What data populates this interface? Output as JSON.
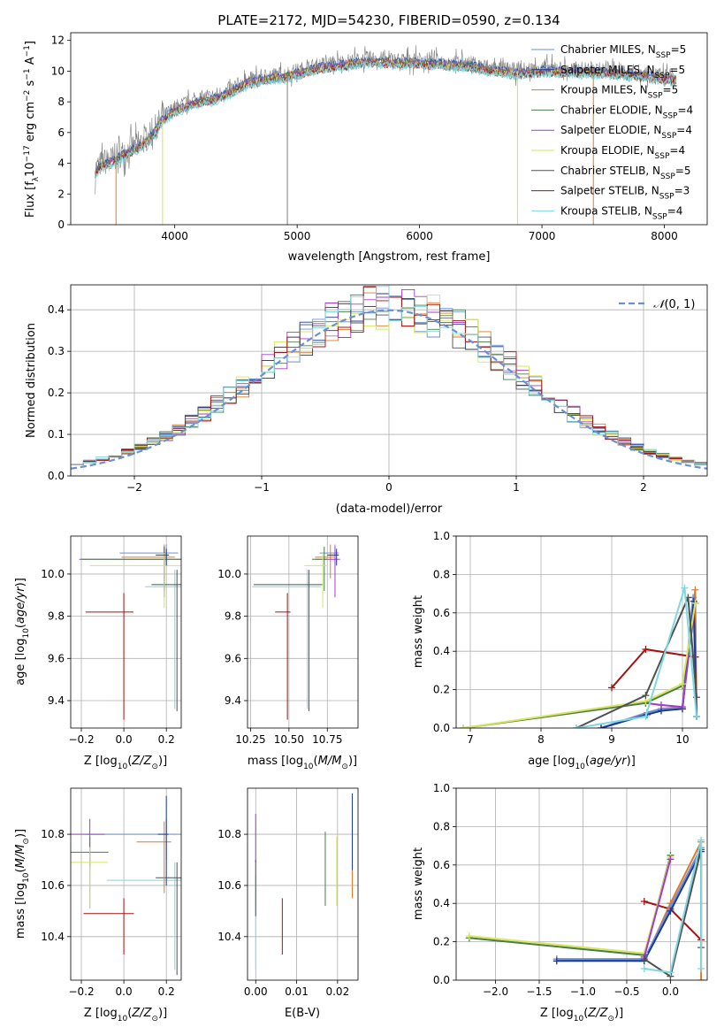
{
  "title": "PLATE=2172, MJD=54230, FIBERID=0590, z=0.134",
  "colors": {
    "Chabrier MILES": "#6b8fd6",
    "Salpeter MILES": "#1a3a9a",
    "Kroupa MILES": "#e07a28",
    "Chabrier ELODIE": "#4a7d4a",
    "Salpeter ELODIE": "#a23cc8",
    "Kroupa ELODIE": "#d8e65a",
    "Chabrier STELIB": "#505050",
    "Salpeter STELIB": "#a01414",
    "Kroupa STELIB": "#7dd8e0",
    "data": "#808080",
    "gauss": "#6b8fd6"
  },
  "chart_data": [
    {
      "type": "line",
      "xlabel": "wavelength [Angstrom, rest frame]",
      "ylabel": "Flux [f_λ10^-17 erg cm^-2 s^-1 A^-1]",
      "xlim": [
        3150,
        8350
      ],
      "ylim": [
        0,
        12.5
      ],
      "xticks": [
        4000,
        5000,
        6000,
        7000,
        8000
      ],
      "yticks": [
        0,
        2,
        4,
        6,
        8,
        10,
        12
      ],
      "legend_position": "right",
      "legend": [
        "Chabrier MILES, N_SSP=5",
        "Salpeter MILES, N_SSP=5",
        "Kroupa MILES, N_SSP=5",
        "Chabrier ELODIE, N_SSP=4",
        "Salpeter ELODIE, N_SSP=4",
        "Kroupa ELODIE, N_SSP=4",
        "Chabrier STELIB, N_SSP=5",
        "Salpeter STELIB, N_SSP=3",
        "Kroupa STELIB, N_SSP=4"
      ],
      "continuum": {
        "x": [
          3350,
          3400,
          3500,
          3600,
          3700,
          3800,
          3900,
          4000,
          4100,
          4200,
          4300,
          4400,
          4500,
          4600,
          4700,
          4800,
          4900,
          5000,
          5200,
          5400,
          5600,
          5800,
          6000,
          6200,
          6400,
          6600,
          6800,
          7000,
          7200,
          7400,
          7600,
          7800,
          8000,
          8100
        ],
        "y": [
          3.6,
          4.0,
          4.3,
          4.8,
          5.2,
          5.8,
          7.0,
          7.6,
          7.9,
          8.2,
          8.3,
          8.6,
          9.0,
          9.4,
          9.6,
          9.7,
          9.8,
          10.0,
          10.4,
          10.6,
          10.8,
          10.7,
          10.7,
          10.6,
          10.5,
          10.2,
          10.0,
          10.2,
          10.1,
          10.1,
          10.0,
          9.9,
          9.7,
          9.6
        ]
      },
      "drop_lines": [
        {
          "x": 3520,
          "series": "Kroupa MILES"
        },
        {
          "x": 3900,
          "series": "Kroupa ELODIE"
        },
        {
          "x": 4920,
          "series": "data"
        },
        {
          "x": 6800,
          "series": "Kroupa ELODIE"
        },
        {
          "x": 7420,
          "series": "Kroupa MILES"
        }
      ]
    },
    {
      "type": "bar",
      "xlabel": "(data-model)/error",
      "ylabel": "Normed distribution",
      "xlim": [
        -2.5,
        2.5
      ],
      "ylim": [
        0,
        0.46
      ],
      "xticks": [
        -2,
        -1,
        0,
        1,
        2
      ],
      "yticks": [
        0.0,
        0.1,
        0.2,
        0.3,
        0.4
      ],
      "legend": [
        "N(0,1)"
      ],
      "bin_width": 0.1,
      "gaussian": {
        "mean": 0,
        "sigma": 1
      }
    },
    {
      "type": "scatter",
      "xlabel": "Z [log10(Z/Z⊙)]",
      "ylabel": "age [log10(age/yr)]",
      "xlim": [
        -0.25,
        0.27
      ],
      "ylim": [
        9.27,
        10.18
      ],
      "xticks": [
        -0.2,
        0.0,
        0.2
      ],
      "yticks": [
        9.4,
        9.6,
        9.8,
        10.0
      ],
      "points": [
        {
          "series": "Salpeter STELIB",
          "x": 0.0,
          "y": 9.82,
          "xerr": 0.18,
          "yerr": [
            0.51,
            0.09
          ]
        },
        {
          "series": "Kroupa STELIB",
          "x": 0.24,
          "y": 9.94,
          "xerr": 0.14,
          "yerr": [
            0.58,
            0.08
          ]
        },
        {
          "series": "Chabrier STELIB",
          "x": 0.25,
          "y": 9.95,
          "xerr": 0.12,
          "yerr": [
            0.6,
            0.07
          ]
        },
        {
          "series": "Chabrier MILES",
          "x": 0.2,
          "y": 10.1,
          "xerr": 0.22,
          "yerr": [
            0.06,
            0.04
          ]
        },
        {
          "series": "Kroupa MILES",
          "x": 0.19,
          "y": 10.08,
          "xerr": 0.2,
          "yerr": [
            0.1,
            0.06
          ]
        },
        {
          "series": "Salpeter ELODIE",
          "x": 0.19,
          "y": 10.07,
          "xerr": 0.4,
          "yerr": [
            0.18,
            0.06
          ]
        },
        {
          "series": "Chabrier ELODIE",
          "x": 0.19,
          "y": 10.07,
          "xerr": 0.39,
          "yerr": [
            0.15,
            0.06
          ]
        },
        {
          "series": "Kroupa ELODIE",
          "x": 0.19,
          "y": 10.04,
          "xerr": 0.35,
          "yerr": [
            0.2,
            0.06
          ]
        },
        {
          "series": "Salpeter MILES",
          "x": 0.2,
          "y": 10.09,
          "xerr": 0.05,
          "yerr": [
            0.05,
            0.03
          ]
        }
      ]
    },
    {
      "type": "scatter",
      "xlabel": "mass [log10(M/M⊙)]",
      "ylabel": "",
      "xlim": [
        10.23,
        10.95
      ],
      "ylim": [
        9.27,
        10.18
      ],
      "xticks": [
        10.25,
        10.5,
        10.75
      ],
      "yticks": [
        9.4,
        9.6,
        9.8,
        10.0
      ],
      "points": [
        {
          "series": "Salpeter STELIB",
          "x": 10.49,
          "y": 9.82,
          "xerr": 0.08,
          "yerr": [
            0.51,
            0.09
          ]
        },
        {
          "series": "Kroupa STELIB",
          "x": 10.62,
          "y": 9.94,
          "xerr": 0.36,
          "yerr": [
            0.58,
            0.08
          ]
        },
        {
          "series": "Chabrier STELIB",
          "x": 10.63,
          "y": 9.95,
          "xerr": 0.36,
          "yerr": [
            0.6,
            0.07
          ]
        },
        {
          "series": "Chabrier MILES",
          "x": 10.8,
          "y": 10.1,
          "xerr": 0.1,
          "yerr": [
            0.06,
            0.04
          ]
        },
        {
          "series": "Kroupa MILES",
          "x": 10.77,
          "y": 10.08,
          "xerr": 0.1,
          "yerr": [
            0.1,
            0.06
          ]
        },
        {
          "series": "Salpeter ELODIE",
          "x": 10.8,
          "y": 10.07,
          "xerr": 0.13,
          "yerr": [
            0.18,
            0.06
          ]
        },
        {
          "series": "Chabrier ELODIE",
          "x": 10.73,
          "y": 10.07,
          "xerr": 0.08,
          "yerr": [
            0.15,
            0.06
          ]
        },
        {
          "series": "Kroupa ELODIE",
          "x": 10.72,
          "y": 10.04,
          "xerr": 0.12,
          "yerr": [
            0.2,
            0.06
          ]
        },
        {
          "series": "Salpeter MILES",
          "x": 10.81,
          "y": 10.09,
          "xerr": 0.06,
          "yerr": [
            0.05,
            0.03
          ]
        }
      ]
    },
    {
      "type": "line",
      "xlabel": "age [log10(age/yr)]",
      "ylabel": "mass weight",
      "xlim": [
        6.8,
        10.35
      ],
      "ylim": [
        0,
        1
      ],
      "xticks": [
        7,
        8,
        9,
        10
      ],
      "yticks": [
        0.0,
        0.2,
        0.4,
        0.6,
        0.8,
        1.0
      ],
      "series": [
        {
          "name": "Salpeter STELIB",
          "x": [
            9.0,
            9.48,
            10.18
          ],
          "y": [
            0.21,
            0.41,
            0.37
          ]
        },
        {
          "name": "Kroupa MILES",
          "x": [
            8.85,
            9.5,
            9.7,
            10.0,
            10.18,
            10.2
          ],
          "y": [
            0.0,
            0.08,
            0.1,
            0.11,
            0.72,
            0.06
          ]
        },
        {
          "name": "Chabrier MILES",
          "x": [
            8.85,
            9.5,
            9.7,
            10.0,
            10.15,
            10.2
          ],
          "y": [
            0.0,
            0.08,
            0.1,
            0.1,
            0.68,
            0.06
          ]
        },
        {
          "name": "Salpeter MILES",
          "x": [
            8.85,
            9.5,
            9.7,
            10.0,
            10.16,
            10.2
          ],
          "y": [
            0.0,
            0.07,
            0.09,
            0.1,
            0.66,
            0.06
          ]
        },
        {
          "name": "Salpeter ELODIE",
          "x": [
            9.48,
            9.7,
            10.0,
            10.18
          ],
          "y": [
            0.13,
            0.12,
            0.11,
            0.65
          ]
        },
        {
          "name": "Chabrier ELODIE",
          "x": [
            6.9,
            9.48,
            10.0,
            10.18
          ],
          "y": [
            0.0,
            0.13,
            0.22,
            0.65
          ]
        },
        {
          "name": "Kroupa ELODIE",
          "x": [
            6.9,
            9.48,
            10.0,
            10.18
          ],
          "y": [
            0.0,
            0.14,
            0.23,
            0.65
          ]
        },
        {
          "name": "Chabrier STELIB",
          "x": [
            8.5,
            9.48,
            10.08,
            10.2
          ],
          "y": [
            0.0,
            0.17,
            0.68,
            0.16
          ]
        },
        {
          "name": "Kroupa STELIB",
          "x": [
            8.5,
            9.48,
            10.03,
            10.2
          ],
          "y": [
            0.0,
            0.06,
            0.73,
            0.06
          ]
        }
      ]
    },
    {
      "type": "scatter",
      "xlabel": "Z [log10(Z/Z⊙)]",
      "ylabel": "mass [log10(M/M⊙)]",
      "xlim": [
        -0.25,
        0.27
      ],
      "ylim": [
        10.23,
        10.98
      ],
      "xticks": [
        -0.2,
        0.0,
        0.2
      ],
      "yticks": [
        10.4,
        10.6,
        10.8
      ],
      "points": [
        {
          "series": "Salpeter STELIB",
          "x": 0.0,
          "y": 10.49,
          "xerr": 0.19,
          "yerr": [
            0.16,
            0.06
          ]
        },
        {
          "series": "Kroupa STELIB",
          "x": 0.24,
          "y": 10.62,
          "xerr": 0.32,
          "yerr": [
            0.35,
            0.07
          ]
        },
        {
          "series": "Chabrier STELIB",
          "x": 0.25,
          "y": 10.63,
          "xerr": 0.1,
          "yerr": [
            0.38,
            0.06
          ]
        },
        {
          "series": "Chabrier MILES",
          "x": 0.2,
          "y": 10.8,
          "xerr": 0.38,
          "yerr": [
            0.1,
            0.06
          ]
        },
        {
          "series": "Kroupa MILES",
          "x": 0.19,
          "y": 10.77,
          "xerr": 0.13,
          "yerr": [
            0.2,
            0.08
          ]
        },
        {
          "series": "Salpeter ELODIE",
          "x": -0.16,
          "y": 10.8,
          "xerr": 0.28,
          "yerr": [
            0.13,
            0.06
          ]
        },
        {
          "series": "Chabrier ELODIE",
          "x": -0.16,
          "y": 10.73,
          "xerr": 0.35,
          "yerr": [
            0.22,
            0.06
          ]
        },
        {
          "series": "Kroupa ELODIE",
          "x": -0.16,
          "y": 10.69,
          "xerr": 0.34,
          "yerr": [
            0.18,
            0.06
          ]
        },
        {
          "series": "Salpeter MILES",
          "x": 0.2,
          "y": 10.8,
          "xerr": 0.04,
          "yerr": [
            0.2,
            0.15
          ]
        }
      ]
    },
    {
      "type": "scatter",
      "xlabel": "E(B-V)",
      "ylabel": "",
      "xlim": [
        -0.002,
        0.025
      ],
      "ylim": [
        10.23,
        10.98
      ],
      "xticks": [
        0.0,
        0.01,
        0.02
      ],
      "yticks": [
        10.4,
        10.6,
        10.8
      ],
      "points": [
        {
          "series": "Salpeter STELIB",
          "x": 0.0065,
          "y": 10.45,
          "yerr": [
            0.12,
            0.1
          ]
        },
        {
          "series": "Kroupa STELIB",
          "x": 0.0,
          "y": 10.42,
          "yerr": [
            0.15,
            0.22
          ]
        },
        {
          "series": "Salpeter ELODIE",
          "x": 0.0,
          "y": 10.74,
          "yerr": [
            0.05,
            0.14
          ]
        },
        {
          "series": "Chabrier STELIB",
          "x": 0.0,
          "y": 10.6,
          "yerr": [
            0.12,
            0.1
          ]
        },
        {
          "series": "Chabrier ELODIE",
          "x": 0.017,
          "y": 10.67,
          "yerr": [
            0.15,
            0.14
          ]
        },
        {
          "series": "Kroupa ELODIE",
          "x": 0.0198,
          "y": 10.65,
          "yerr": [
            0.13,
            0.14
          ]
        },
        {
          "series": "Kroupa MILES",
          "x": 0.0236,
          "y": 10.7,
          "yerr": [
            0.15,
            0.2
          ]
        },
        {
          "series": "Salpeter MILES",
          "x": 0.0236,
          "y": 10.76,
          "yerr": [
            0.1,
            0.2
          ]
        }
      ]
    },
    {
      "type": "line",
      "xlabel": "Z [log10(Z/Z⊙)]",
      "ylabel": "mass weight",
      "xlim": [
        -2.45,
        0.42
      ],
      "ylim": [
        0,
        1
      ],
      "xticks": [
        -2.0,
        -1.5,
        -1.0,
        -0.5,
        0.0
      ],
      "yticks": [
        0.0,
        0.2,
        0.4,
        0.6,
        0.8,
        1.0
      ],
      "series": [
        {
          "name": "Salpeter STELIB",
          "x": [
            -0.3,
            0.0,
            0.35
          ],
          "y": [
            0.41,
            0.37,
            0.21
          ]
        },
        {
          "name": "Kroupa MILES",
          "x": [
            -1.3,
            -0.3,
            0.0,
            0.35,
            0.35
          ],
          "y": [
            0.11,
            0.1,
            0.4,
            0.72,
            0.0
          ]
        },
        {
          "name": "Chabrier MILES",
          "x": [
            -1.3,
            -0.3,
            0.0,
            0.35
          ],
          "y": [
            0.11,
            0.11,
            0.38,
            0.69
          ]
        },
        {
          "name": "Salpeter MILES",
          "x": [
            -1.3,
            -0.3,
            0.0,
            0.35
          ],
          "y": [
            0.1,
            0.1,
            0.36,
            0.67
          ]
        },
        {
          "name": "Chabrier ELODIE",
          "x": [
            -2.3,
            -0.3,
            0.0
          ],
          "y": [
            0.22,
            0.13,
            0.65
          ]
        },
        {
          "name": "Kroupa ELODIE",
          "x": [
            -2.3,
            -0.3,
            0.0
          ],
          "y": [
            0.23,
            0.14,
            0.64
          ]
        },
        {
          "name": "Salpeter ELODIE",
          "x": [
            -0.3,
            0.0
          ],
          "y": [
            0.12,
            0.63
          ]
        },
        {
          "name": "Chabrier STELIB",
          "x": [
            -0.3,
            0.0,
            0.35,
            0.35
          ],
          "y": [
            0.11,
            0.02,
            0.68,
            0.17
          ]
        },
        {
          "name": "Kroupa STELIB",
          "x": [
            -0.3,
            0.0,
            0.35,
            0.35
          ],
          "y": [
            0.06,
            0.04,
            0.73,
            0.06
          ]
        }
      ]
    }
  ]
}
